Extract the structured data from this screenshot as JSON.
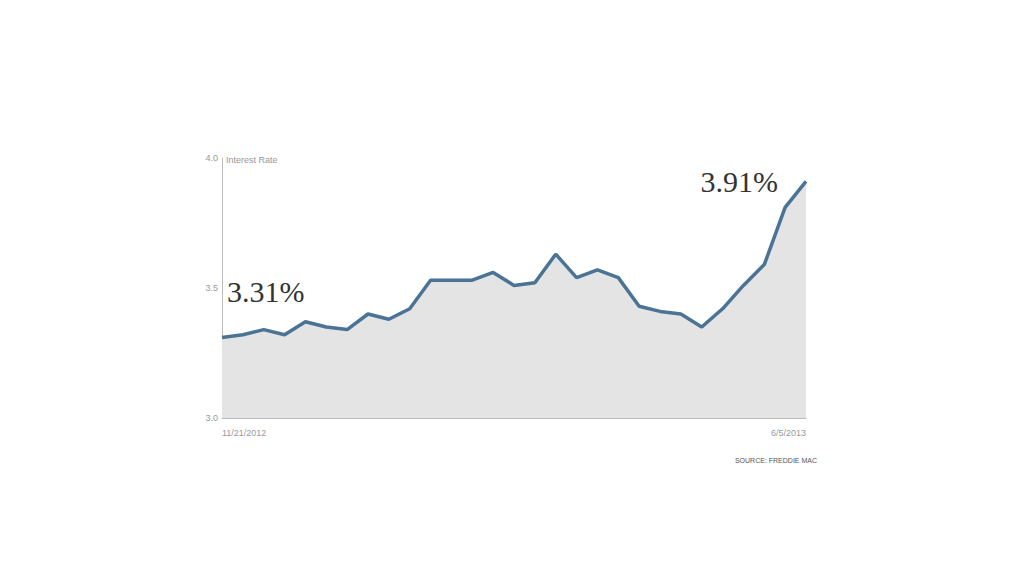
{
  "chart_data": {
    "type": "area",
    "y_label": "Interest Rate",
    "source": "SOURCE: FREDDIE MAC",
    "categories": [
      "11/21/2012",
      null,
      null,
      null,
      null,
      null,
      null,
      null,
      null,
      null,
      null,
      null,
      null,
      null,
      null,
      null,
      null,
      null,
      null,
      null,
      null,
      null,
      null,
      null,
      null,
      null,
      null,
      null,
      "6/5/2013"
    ],
    "values": [
      3.31,
      3.32,
      3.34,
      3.32,
      3.37,
      3.35,
      3.34,
      3.4,
      3.38,
      3.42,
      3.53,
      3.53,
      3.53,
      3.56,
      3.51,
      3.52,
      3.63,
      3.54,
      3.57,
      3.54,
      3.43,
      3.41,
      3.4,
      3.35,
      3.42,
      3.51,
      3.59,
      3.81,
      3.91
    ],
    "color": "#4a7396",
    "ylim": [
      3,
      4
    ],
    "yticks": [
      {
        "value": 3,
        "label": "3.0"
      },
      {
        "value": 3.5,
        "label": "3.5"
      },
      {
        "value": 4,
        "label": "4.0"
      }
    ],
    "grid": false,
    "annotations": [
      {
        "text": "3.31%",
        "x": "11/21/2012",
        "y": 3.31
      },
      {
        "text": "3.91%",
        "x": "6/5/2013",
        "y": 3.91
      }
    ]
  }
}
